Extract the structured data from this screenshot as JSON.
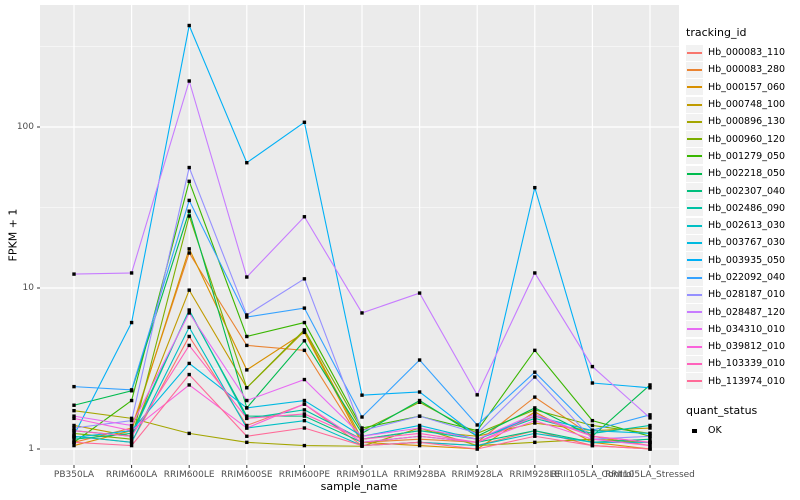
{
  "figure": {
    "y_axis_title": "FPKM + 1",
    "x_axis_title": "sample_name",
    "legend": {
      "tracking_title": "tracking_id",
      "quant_title": "quant_status",
      "quant_ok_label": "OK"
    },
    "panel_bg": "#EBEBEB",
    "grid_color": "#FFFFFF",
    "tick_label_color": "#4D4D4D",
    "point_color": "#000000"
  },
  "chart_data": {
    "type": "line",
    "x_type": "categorical",
    "y_scale": "log10",
    "xlabel": "sample_name",
    "ylabel": "FPKM + 1",
    "y_ticks": [
      1,
      10,
      100
    ],
    "y_minor_ticks": [
      3.1623,
      31.623,
      316.23
    ],
    "ylim": [
      1,
      570
    ],
    "grid": "white on gray panel",
    "legend_position": "right",
    "point_marker": {
      "shape": "square",
      "color": "#000000",
      "legend_label": "OK"
    },
    "categories": [
      "PB350LA",
      "RRIM600LA",
      "RRIM600LE",
      "RRIM600SE",
      "RRIM600PE",
      "RRIM901LA",
      "RRIM928BA",
      "RRIM928LA",
      "RRIM928LE",
      "RRII105LA_Control",
      "RRII105LA_Stressed"
    ],
    "series": [
      {
        "name": "Hb_000083_110",
        "color": "#F8766D",
        "values": [
          1.2,
          1.1,
          5.0,
          1.4,
          1.9,
          1.05,
          1.1,
          1.05,
          1.3,
          1.05,
          1.0
        ]
      },
      {
        "name": "Hb_000083_280",
        "color": "#EA8331",
        "values": [
          1.1,
          1.35,
          16.5,
          4.4,
          4.1,
          1.1,
          1.15,
          1.1,
          2.1,
          1.2,
          1.05
        ]
      },
      {
        "name": "Hb_000157_060",
        "color": "#D89000",
        "values": [
          1.05,
          1.3,
          17.5,
          3.1,
          5.3,
          1.1,
          1.05,
          1.0,
          1.7,
          1.1,
          1.0
        ]
      },
      {
        "name": "Hb_000748_100",
        "color": "#C09B00",
        "values": [
          1.4,
          1.2,
          9.7,
          2.4,
          5.4,
          1.15,
          1.3,
          1.2,
          1.45,
          1.3,
          1.35
        ]
      },
      {
        "name": "Hb_000896_130",
        "color": "#A3A500",
        "values": [
          1.73,
          1.55,
          1.25,
          1.1,
          1.05,
          1.04,
          1.35,
          1.05,
          1.1,
          1.15,
          1.1
        ]
      },
      {
        "name": "Hb_000960_120",
        "color": "#7CAE00",
        "values": [
          1.25,
          1.15,
          28.0,
          2.4,
          5.5,
          1.3,
          1.95,
          1.25,
          1.75,
          1.4,
          1.25
        ]
      },
      {
        "name": "Hb_001279_050",
        "color": "#39B600",
        "values": [
          1.1,
          2.0,
          46.0,
          5.0,
          6.1,
          1.35,
          1.6,
          1.3,
          4.1,
          1.5,
          1.2
        ]
      },
      {
        "name": "Hb_002218_050",
        "color": "#00BB4E",
        "values": [
          1.87,
          2.3,
          30.0,
          1.8,
          4.7,
          1.25,
          2.0,
          1.2,
          1.8,
          1.2,
          2.5
        ]
      },
      {
        "name": "Hb_002307_040",
        "color": "#00BF7D",
        "values": [
          1.15,
          1.25,
          7.2,
          1.6,
          1.6,
          1.1,
          1.2,
          1.1,
          1.3,
          1.1,
          1.15
        ]
      },
      {
        "name": "Hb_002486_090",
        "color": "#00C1A3",
        "values": [
          1.3,
          1.2,
          7.3,
          1.55,
          1.75,
          1.15,
          1.3,
          1.15,
          1.55,
          1.25,
          1.4
        ]
      },
      {
        "name": "Hb_002613_030",
        "color": "#00BFC4",
        "values": [
          1.2,
          1.1,
          5.7,
          1.35,
          1.5,
          1.05,
          1.1,
          1.05,
          1.25,
          1.1,
          1.1
        ]
      },
      {
        "name": "Hb_003767_030",
        "color": "#00BAE0",
        "values": [
          1.18,
          1.3,
          3.4,
          1.8,
          2.0,
          1.2,
          1.4,
          1.15,
          1.6,
          1.3,
          1.25
        ]
      },
      {
        "name": "Hb_003935_050",
        "color": "#00B0F6",
        "values": [
          1.22,
          6.1,
          427,
          60.0,
          107,
          2.16,
          2.26,
          1.2,
          42.0,
          2.57,
          2.4
        ]
      },
      {
        "name": "Hb_022092_040",
        "color": "#35A2FF",
        "values": [
          2.44,
          2.33,
          35.0,
          6.6,
          7.5,
          1.58,
          3.57,
          1.41,
          3.0,
          1.31,
          1.63
        ]
      },
      {
        "name": "Hb_028187_010",
        "color": "#9590FF",
        "values": [
          1.35,
          1.5,
          56.0,
          6.8,
          11.4,
          1.3,
          1.6,
          1.25,
          2.8,
          1.15,
          1.2
        ]
      },
      {
        "name": "Hb_028487_120",
        "color": "#C77CFF",
        "values": [
          12.2,
          12.4,
          193,
          11.7,
          27.7,
          7.0,
          9.3,
          2.17,
          12.4,
          3.25,
          1.56
        ]
      },
      {
        "name": "Hb_034310_010",
        "color": "#E76BF3",
        "values": [
          1.6,
          1.4,
          7.0,
          2.0,
          2.7,
          1.2,
          1.35,
          1.15,
          1.65,
          1.2,
          1.1
        ]
      },
      {
        "name": "Hb_039812_010",
        "color": "#FA62DB",
        "values": [
          1.55,
          1.3,
          2.5,
          1.35,
          1.9,
          1.1,
          1.2,
          1.1,
          1.5,
          1.15,
          1.05
        ]
      },
      {
        "name": "Hb_103339_010",
        "color": "#FF62BC",
        "values": [
          1.3,
          1.2,
          4.4,
          1.55,
          1.65,
          1.15,
          1.25,
          1.1,
          1.6,
          1.2,
          1.1
        ]
      },
      {
        "name": "Hb_113974_010",
        "color": "#FF6A98",
        "values": [
          1.1,
          1.05,
          2.9,
          1.2,
          1.35,
          1.05,
          1.1,
          1.0,
          1.2,
          1.05,
          1.0
        ]
      }
    ]
  }
}
